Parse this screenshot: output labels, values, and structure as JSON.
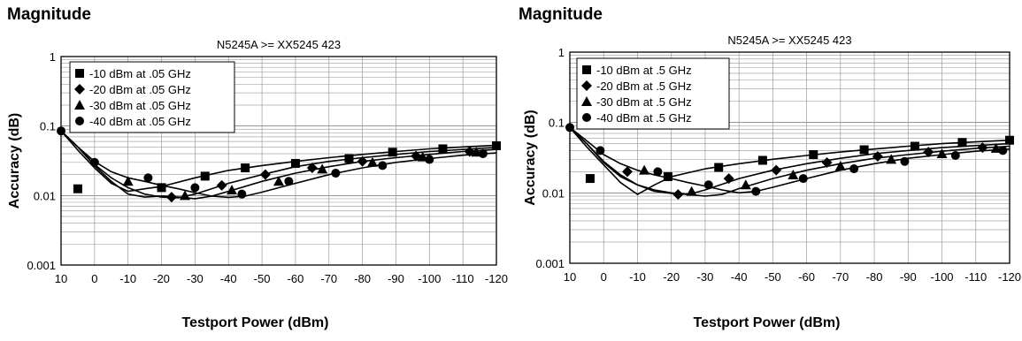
{
  "chart_data": [
    {
      "type": "line",
      "heading": "Magnitude",
      "title": "N5245A >= XX5245 423",
      "xlabel": "Testport Power (dBm)",
      "ylabel": "Accuracy (dB)",
      "x_ticks": [
        "10",
        "0",
        "-10",
        "-20",
        "-30",
        "-40",
        "-50",
        "-60",
        "-70",
        "-80",
        "-90",
        "-100",
        "-110",
        "-120"
      ],
      "y_ticks": [
        "1",
        "0.1",
        "0.01",
        "0.001"
      ],
      "xlim": [
        10,
        -120
      ],
      "ylim": [
        0.001,
        1
      ],
      "yscale": "log",
      "grid": true,
      "legend_position": "top-left",
      "series": [
        {
          "name": "-10 dBm at .05 GHz",
          "marker": "square",
          "x": [
            10,
            5,
            0,
            -5,
            -10,
            -15,
            -20,
            -30,
            -40,
            -50,
            -60,
            -70,
            -80,
            -90,
            -100,
            -110,
            -120
          ],
          "y": [
            0.085,
            0.045,
            0.025,
            0.015,
            0.0115,
            0.0125,
            0.0135,
            0.018,
            0.023,
            0.027,
            0.031,
            0.035,
            0.039,
            0.043,
            0.047,
            0.05,
            0.053
          ],
          "markers_x": [
            5,
            -20,
            -33,
            -45,
            -60,
            -76,
            -89,
            -104,
            -120
          ],
          "markers_y": [
            0.0125,
            0.013,
            0.019,
            0.025,
            0.029,
            0.034,
            0.042,
            0.047,
            0.052
          ]
        },
        {
          "name": "-20 dBm at .05 GHz",
          "marker": "diamond",
          "x": [
            10,
            5,
            0,
            -5,
            -10,
            -15,
            -20,
            -25,
            -30,
            -40,
            -50,
            -60,
            -70,
            -80,
            -90,
            -100,
            -110,
            -120
          ],
          "y": [
            0.085,
            0.05,
            0.028,
            0.018,
            0.013,
            0.0105,
            0.0095,
            0.0093,
            0.0105,
            0.015,
            0.02,
            0.026,
            0.031,
            0.035,
            0.039,
            0.043,
            0.046,
            0.049
          ],
          "markers_x": [
            -23,
            -38,
            -51,
            -65,
            -80,
            -96,
            -112
          ],
          "markers_y": [
            0.0095,
            0.014,
            0.02,
            0.025,
            0.031,
            0.037,
            0.043
          ]
        },
        {
          "name": "-30 dBm at .05 GHz",
          "marker": "triangle",
          "x": [
            10,
            5,
            0,
            -5,
            -10,
            -15,
            -20,
            -25,
            -30,
            -35,
            -40,
            -50,
            -60,
            -70,
            -80,
            -90,
            -100,
            -110,
            -120
          ],
          "y": [
            0.085,
            0.05,
            0.027,
            0.016,
            0.0105,
            0.0095,
            0.0098,
            0.0095,
            0.009,
            0.0098,
            0.0115,
            0.016,
            0.021,
            0.026,
            0.031,
            0.035,
            0.039,
            0.043,
            0.046
          ],
          "markers_x": [
            -10,
            -27,
            -41,
            -55,
            -68,
            -83,
            -98,
            -114
          ],
          "markers_y": [
            0.016,
            0.01,
            0.012,
            0.016,
            0.024,
            0.03,
            0.036,
            0.042
          ]
        },
        {
          "name": "-40 dBm at .05 GHz",
          "marker": "circle",
          "x": [
            10,
            5,
            0,
            -5,
            -10,
            -15,
            -20,
            -25,
            -30,
            -35,
            -40,
            -45,
            -50,
            -60,
            -70,
            -80,
            -90,
            -100,
            -110,
            -120
          ],
          "y": [
            0.085,
            0.05,
            0.031,
            0.022,
            0.018,
            0.016,
            0.014,
            0.0125,
            0.011,
            0.0098,
            0.0094,
            0.0098,
            0.0112,
            0.015,
            0.02,
            0.025,
            0.03,
            0.034,
            0.038,
            0.041
          ],
          "markers_x": [
            10,
            0,
            -16,
            -30,
            -44,
            -58,
            -72,
            -86,
            -100,
            -116
          ],
          "markers_y": [
            0.085,
            0.03,
            0.018,
            0.013,
            0.0105,
            0.016,
            0.021,
            0.027,
            0.033,
            0.04
          ]
        }
      ]
    },
    {
      "type": "line",
      "heading": "Magnitude",
      "title": "N5245A >= XX5245 423",
      "xlabel": "Testport Power (dBm)",
      "ylabel": "Accuracy (dB)",
      "x_ticks": [
        "10",
        "0",
        "-10",
        "-20",
        "-30",
        "-40",
        "-50",
        "-60",
        "-70",
        "-80",
        "-90",
        "-100",
        "-110",
        "-120"
      ],
      "y_ticks": [
        "1",
        "0.1",
        "0.01",
        "0.001"
      ],
      "xlim": [
        10,
        -120
      ],
      "ylim": [
        0.001,
        1
      ],
      "yscale": "log",
      "grid": true,
      "legend_position": "top-left",
      "series": [
        {
          "name": "-10 dBm at .5 GHz",
          "marker": "square",
          "x": [
            10,
            5,
            0,
            -5,
            -10,
            -15,
            -20,
            -30,
            -40,
            -50,
            -60,
            -70,
            -80,
            -90,
            -100,
            -110,
            -120
          ],
          "y": [
            0.085,
            0.045,
            0.025,
            0.014,
            0.0095,
            0.013,
            0.017,
            0.022,
            0.026,
            0.03,
            0.034,
            0.038,
            0.042,
            0.046,
            0.05,
            0.053,
            0.056
          ],
          "markers_x": [
            4,
            -19,
            -34,
            -47,
            -62,
            -77,
            -92,
            -106,
            -120
          ],
          "markers_y": [
            0.016,
            0.017,
            0.023,
            0.029,
            0.035,
            0.041,
            0.046,
            0.052,
            0.056
          ]
        },
        {
          "name": "-20 dBm at .5 GHz",
          "marker": "diamond",
          "x": [
            10,
            5,
            0,
            -5,
            -10,
            -15,
            -20,
            -25,
            -30,
            -40,
            -50,
            -60,
            -70,
            -80,
            -90,
            -100,
            -110,
            -120
          ],
          "y": [
            0.085,
            0.05,
            0.028,
            0.018,
            0.013,
            0.0105,
            0.0098,
            0.0095,
            0.011,
            0.016,
            0.021,
            0.026,
            0.031,
            0.036,
            0.04,
            0.044,
            0.047,
            0.05
          ],
          "markers_x": [
            -7,
            -22,
            -37,
            -51,
            -66,
            -81,
            -96,
            -112
          ],
          "markers_y": [
            0.02,
            0.0095,
            0.016,
            0.021,
            0.027,
            0.033,
            0.038,
            0.044
          ]
        },
        {
          "name": "-30 dBm at .5 GHz",
          "marker": "triangle",
          "x": [
            10,
            5,
            0,
            -5,
            -10,
            -15,
            -20,
            -25,
            -30,
            -35,
            -40,
            -50,
            -60,
            -70,
            -80,
            -90,
            -100,
            -110,
            -120
          ],
          "y": [
            0.085,
            0.05,
            0.027,
            0.017,
            0.013,
            0.011,
            0.01,
            0.0095,
            0.009,
            0.0095,
            0.0115,
            0.016,
            0.021,
            0.026,
            0.031,
            0.035,
            0.039,
            0.043,
            0.046
          ],
          "markers_x": [
            -12,
            -26,
            -42,
            -56,
            -70,
            -85,
            -100,
            -116
          ],
          "markers_y": [
            0.021,
            0.0105,
            0.013,
            0.018,
            0.024,
            0.03,
            0.036,
            0.043
          ]
        },
        {
          "name": "-40 dBm at .5 GHz",
          "marker": "circle",
          "x": [
            10,
            5,
            0,
            -5,
            -10,
            -15,
            -20,
            -25,
            -30,
            -35,
            -40,
            -45,
            -50,
            -60,
            -70,
            -80,
            -90,
            -100,
            -110,
            -120
          ],
          "y": [
            0.085,
            0.055,
            0.035,
            0.026,
            0.021,
            0.018,
            0.016,
            0.014,
            0.0125,
            0.011,
            0.01,
            0.0105,
            0.012,
            0.016,
            0.021,
            0.026,
            0.031,
            0.035,
            0.039,
            0.042
          ],
          "markers_x": [
            10,
            1,
            -16,
            -31,
            -45,
            -59,
            -74,
            -89,
            -104,
            -118
          ],
          "markers_y": [
            0.085,
            0.04,
            0.02,
            0.013,
            0.0105,
            0.016,
            0.022,
            0.028,
            0.034,
            0.04
          ]
        }
      ]
    }
  ]
}
